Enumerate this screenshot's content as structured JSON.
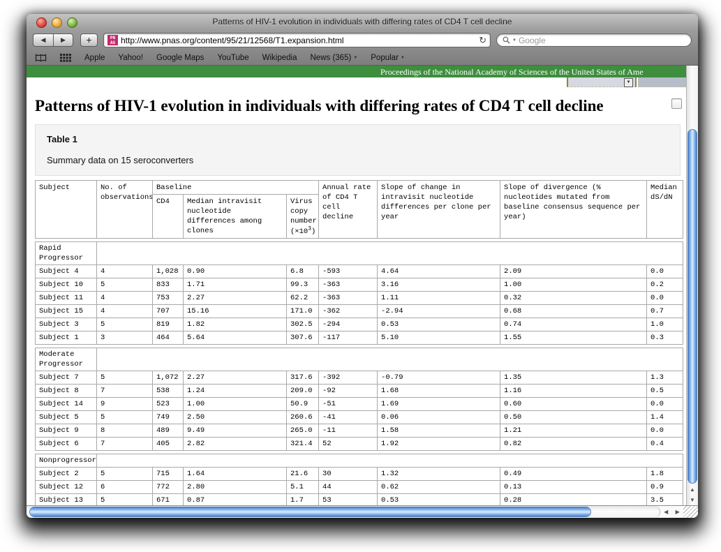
{
  "window": {
    "title": "Patterns of HIV-1 evolution in individuals with differing rates of CD4 T cell decline"
  },
  "browser": {
    "url": "http://www.pnas.org/content/95/21/12568/T1.expansion.html",
    "new_tab_label": "+",
    "search_placeholder": "Google"
  },
  "bookmarks": {
    "items": [
      {
        "label": "Apple"
      },
      {
        "label": "Yahoo!"
      },
      {
        "label": "Google Maps"
      },
      {
        "label": "YouTube"
      },
      {
        "label": "Wikipedia"
      },
      {
        "label": "News (365)",
        "dropdown": true
      },
      {
        "label": "Popular",
        "dropdown": true
      }
    ]
  },
  "banner": {
    "text": "Proceedings of the National Academy of Sciences of the United States of Ame",
    "bg_color": "#3e8e3e"
  },
  "page": {
    "title": "Patterns of HIV-1 evolution in individuals with differing rates of CD4 T cell decline",
    "table_box": {
      "label": "Table 1",
      "caption": "Summary data on 15 seroconverters"
    }
  },
  "table": {
    "headers": {
      "subject": "Subject",
      "observations": "No. of observations",
      "baseline": "Baseline",
      "cd4": "CD4",
      "median_intravisit": "Median intravisit nucleotide differences among clones",
      "virus_copy": "Virus copy number",
      "virus_exp_prefix": "(×10",
      "virus_exp": "3",
      "virus_exp_suffix": ")",
      "annual_rate": "Annual rate of CD4 T cell decline",
      "slope_change": "Slope of change in intravisit nucleotide differences per clone per year",
      "slope_divergence": "Slope of divergence (% nucleotides mutated from baseline consensus sequence per year)",
      "median_dsdn": "Median dS/dN"
    },
    "sections": [
      {
        "group": "Rapid Progressor",
        "rows": [
          [
            "Subject 4",
            "4",
            "1,028",
            "0.90",
            "6.8",
            "-593",
            "4.64",
            "2.09",
            "0.0"
          ],
          [
            "Subject 10",
            "5",
            "833",
            "1.71",
            "99.3",
            "-363",
            "3.16",
            "1.00",
            "0.2"
          ],
          [
            "Subject 11",
            "4",
            "753",
            "2.27",
            "62.2",
            "-363",
            "1.11",
            "0.32",
            "0.0"
          ],
          [
            "Subject 15",
            "4",
            "707",
            "15.16",
            "171.0",
            "-362",
            "-2.94",
            "0.68",
            "0.7"
          ],
          [
            "Subject 3",
            "5",
            "819",
            "1.82",
            "302.5",
            "-294",
            "0.53",
            "0.74",
            "1.0"
          ],
          [
            "Subject 1",
            "3",
            "464",
            "5.64",
            "307.6",
            "-117",
            "5.10",
            "1.55",
            "0.3"
          ]
        ]
      },
      {
        "group": "Moderate Progressor",
        "rows": [
          [
            "Subject 7",
            "5",
            "1,072",
            "2.27",
            "317.6",
            "-392",
            "-0.79",
            "1.35",
            "1.3"
          ],
          [
            "Subject 8",
            "7",
            "538",
            "1.24",
            "209.0",
            "-92",
            "1.68",
            "1.16",
            "0.5"
          ],
          [
            "Subject 14",
            "9",
            "523",
            "1.00",
            "50.9",
            "-51",
            "1.69",
            "0.60",
            "0.0"
          ],
          [
            "Subject 5",
            "5",
            "749",
            "2.50",
            "260.6",
            "-41",
            "0.06",
            "0.50",
            "1.4"
          ],
          [
            "Subject 9",
            "8",
            "489",
            "9.49",
            "265.0",
            "-11",
            "1.58",
            "1.21",
            "0.0"
          ],
          [
            "Subject 6",
            "7",
            "405",
            "2.82",
            "321.4",
            "52",
            "1.92",
            "0.82",
            "0.4"
          ]
        ]
      },
      {
        "group": "Nonprogressor",
        "rows": [
          [
            "Subject 2",
            "5",
            "715",
            "1.64",
            "21.6",
            "30",
            "1.32",
            "0.49",
            "1.8"
          ],
          [
            "Subject 12",
            "6",
            "772",
            "2.80",
            "5.1",
            "44",
            "0.62",
            "0.13",
            "0.9"
          ],
          [
            "Subject 13",
            "5",
            "671",
            "0.87",
            "1.7",
            "53",
            "0.53",
            "0.28",
            "3.5"
          ]
        ]
      }
    ]
  },
  "colors": {
    "banner_green": "#3e8e3e",
    "favicon_magenta": "#c42a6c",
    "scrollbar_blue": "#8ab6ec",
    "table_border_gray": "#a8a8a8"
  }
}
